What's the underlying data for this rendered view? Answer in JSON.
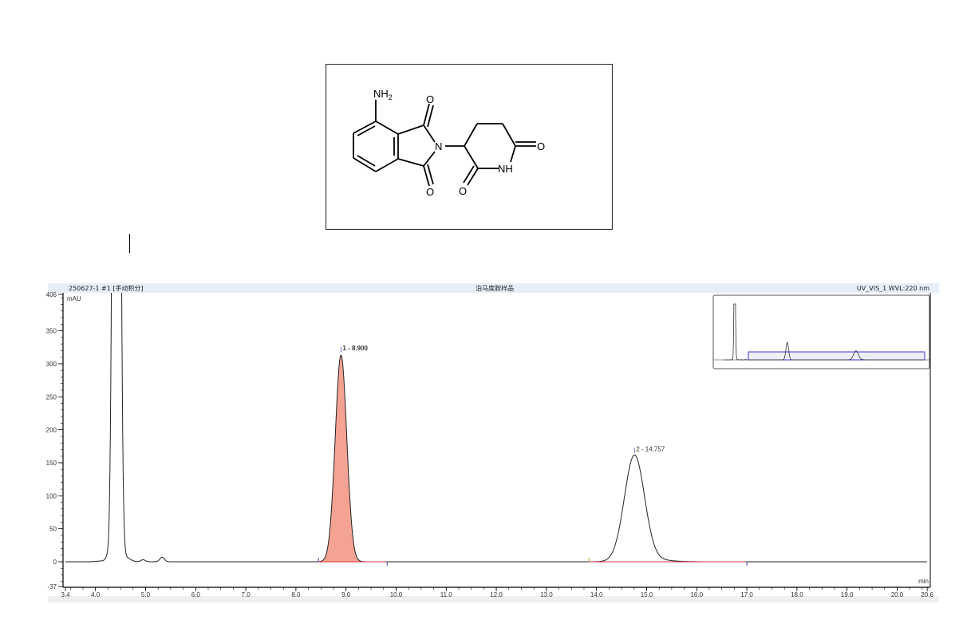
{
  "structure": {
    "atoms": {
      "nh2": "NH",
      "nh2_sub": "2",
      "n": "N",
      "o": "O",
      "nh": "NH"
    }
  },
  "header": {
    "left": "250627-1 #1 [手动积分]",
    "center": "泊马度胺样品",
    "right": "UV_VIS_1 WVL:220 nm"
  },
  "chart_data": {
    "type": "line",
    "title": "泊马度胺样品",
    "xlabel": "min",
    "ylabel": "mAU",
    "xlim": [
      3.4,
      20.6
    ],
    "ylim": [
      -37,
      406
    ],
    "x_ticks": [
      "3.4",
      "4.0",
      "5.0",
      "6.0",
      "7.0",
      "8.0",
      "9.0",
      "10.0",
      "11.0",
      "12.0",
      "13.0",
      "14.0",
      "15.0",
      "16.0",
      "17.0",
      "18.0",
      "19.0",
      "20.0",
      "20.6"
    ],
    "y_ticks": [
      "-37",
      "0",
      "50",
      "100",
      "150",
      "200",
      "250",
      "300",
      "350",
      "406"
    ],
    "grid": false,
    "peaks": [
      {
        "label": "1 - 8.900",
        "rt": 8.9,
        "height": 313,
        "baseline_start": 8.45,
        "baseline_end": 9.82,
        "filled": true
      },
      {
        "label": "2 - 14.757",
        "rt": 14.757,
        "height": 160,
        "baseline_start": 13.85,
        "baseline_end": 17.0,
        "filled": false
      }
    ],
    "solvent_peak": {
      "rt": 4.42,
      "off_scale": true
    },
    "minor_peaks": [
      {
        "rt": 4.95,
        "height": 3
      },
      {
        "rt": 5.33,
        "height": 7
      }
    ],
    "inset_overview": true,
    "colors": {
      "trace": "#222222",
      "peak1_fill": "#f4a393",
      "peak1_label": "#e0553e",
      "baseline": "#e03030",
      "marker": "#4040c0",
      "header_bg": "#e6eef8",
      "inset_window": "#3a3ad0"
    }
  }
}
